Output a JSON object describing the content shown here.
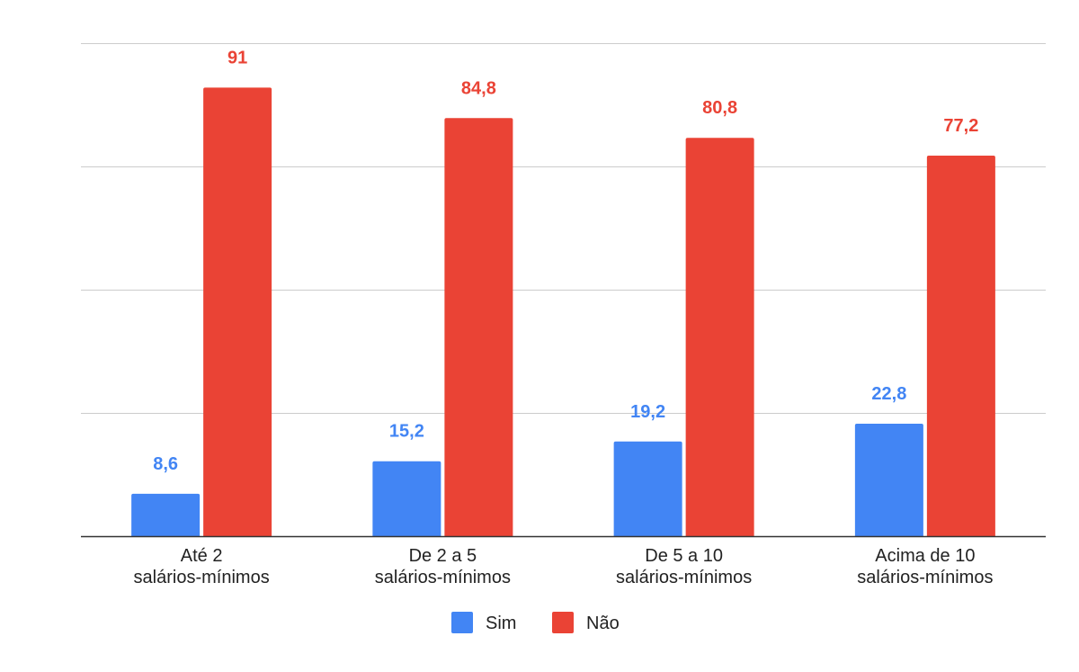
{
  "chart_data": {
    "type": "bar",
    "categories": [
      [
        "Até 2",
        "salários-mínimos"
      ],
      [
        "De 2 a 5",
        "salários-mínimos"
      ],
      [
        "De 5 a 10",
        "salários-mínimos"
      ],
      [
        "Acima de 10",
        "salários-mínimos"
      ]
    ],
    "series": [
      {
        "name": "Sim",
        "color": "#4285F4",
        "values": [
          8.6,
          15.2,
          19.2,
          22.8
        ],
        "labels": [
          "8,6",
          "15,2",
          "19,2",
          "22,8"
        ]
      },
      {
        "name": "Não",
        "color": "#EA4335",
        "values": [
          91,
          84.8,
          80.8,
          77.2
        ],
        "labels": [
          "91",
          "84,8",
          "80,8",
          "77,2"
        ]
      }
    ],
    "ylim": [
      0,
      100
    ],
    "grid": true,
    "legend": "bottom",
    "title": "",
    "xlabel": "",
    "ylabel": ""
  }
}
